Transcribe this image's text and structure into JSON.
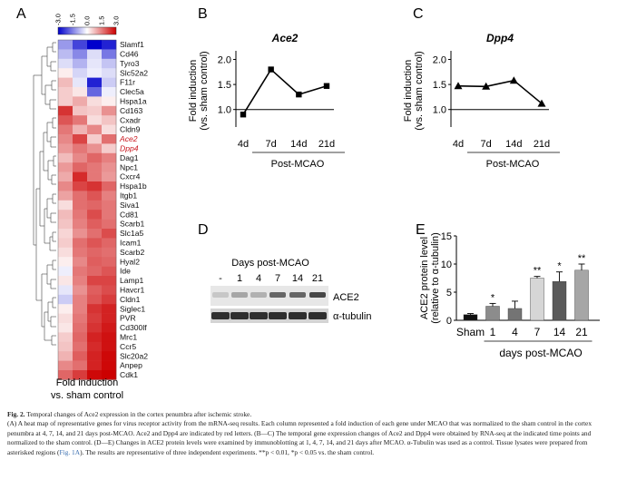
{
  "panels": {
    "a": "A",
    "b": "B",
    "c": "C",
    "d": "D",
    "e": "E"
  },
  "heatmap": {
    "scale_ticks": [
      "-3.0",
      "-1.5",
      "0.0",
      "1.5",
      "3.0"
    ],
    "genes": [
      "Slamf1",
      "Cd46",
      "Tyro3",
      "Slc52a2",
      "F11r",
      "Clec5a",
      "Hspa1a",
      "Cd163",
      "Cxadr",
      "Cldn9",
      "Ace2",
      "Dpp4",
      "Dag1",
      "Npc1",
      "Cxcr4",
      "Hspa1b",
      "Itgb1",
      "Siva1",
      "Cd81",
      "Scarb1",
      "Slc1a5",
      "Icam1",
      "Scarb2",
      "Hyal2",
      "Ide",
      "Lamp1",
      "Havcr1",
      "Cldn1",
      "Siglec1",
      "PVR",
      "Cd300lf",
      "Mrc1",
      "Ccr5",
      "Slc20a2",
      "Anpep",
      "Cdk1"
    ],
    "highlighted_genes": [
      "Ace2",
      "Dpp4"
    ],
    "values": [
      [
        -1.2,
        -2.2,
        -3,
        -2.6
      ],
      [
        -0.8,
        -1.4,
        -0.4,
        -1.6
      ],
      [
        -0.4,
        -0.9,
        -0.3,
        -0.7
      ],
      [
        0.2,
        -0.5,
        -0.2,
        -0.4
      ],
      [
        0.8,
        -0.3,
        -2.6,
        -0.6
      ],
      [
        0.6,
        0.3,
        -1.8,
        -0.2
      ],
      [
        0.6,
        1.0,
        0.4,
        0.2
      ],
      [
        2.4,
        0.7,
        0.6,
        1.3
      ],
      [
        2.0,
        1.6,
        0.4,
        0.7
      ],
      [
        1.6,
        0.9,
        1.4,
        0.4
      ],
      [
        1.4,
        2.2,
        0.6,
        1.7
      ],
      [
        1.2,
        1.6,
        1.3,
        0.6
      ],
      [
        0.8,
        1.4,
        1.8,
        1.5
      ],
      [
        1.2,
        1.8,
        1.6,
        1.3
      ],
      [
        1.0,
        2.5,
        1.6,
        1.2
      ],
      [
        1.4,
        2.2,
        2.4,
        1.8
      ],
      [
        1.1,
        1.7,
        2.0,
        1.5
      ],
      [
        0.4,
        1.7,
        1.8,
        1.6
      ],
      [
        0.8,
        1.6,
        2.1,
        1.6
      ],
      [
        0.7,
        1.5,
        1.9,
        1.7
      ],
      [
        0.5,
        1.3,
        1.7,
        2.1
      ],
      [
        0.6,
        1.7,
        2.0,
        1.8
      ],
      [
        0.4,
        1.6,
        1.8,
        1.7
      ],
      [
        0.2,
        1.4,
        1.9,
        1.8
      ],
      [
        -0.2,
        1.6,
        1.8,
        2.0
      ],
      [
        0.3,
        1.5,
        2.2,
        2.2
      ],
      [
        -0.3,
        1.3,
        1.9,
        2.1
      ],
      [
        -0.6,
        1.5,
        2.0,
        2.3
      ],
      [
        0.2,
        1.5,
        2.4,
        2.6
      ],
      [
        0.4,
        1.6,
        2.3,
        2.6
      ],
      [
        0.3,
        1.7,
        2.4,
        2.7
      ],
      [
        0.6,
        1.8,
        2.6,
        2.8
      ],
      [
        0.7,
        1.7,
        2.5,
        2.8
      ],
      [
        0.9,
        1.9,
        2.6,
        2.9
      ],
      [
        1.4,
        1.7,
        2.6,
        2.9
      ],
      [
        1.8,
        2.3,
        2.9,
        3.0
      ]
    ],
    "xlabel_line1": "Fold induction",
    "xlabel_line2": "vs. sham control",
    "colors": {
      "low": "#0000cc",
      "mid": "#ffffff",
      "high": "#cc0000",
      "highlight": "#c8161d"
    }
  },
  "chart_data": [
    {
      "type": "line",
      "title": "Ace2",
      "categories": [
        "4d",
        "7d",
        "14d",
        "21d"
      ],
      "values": [
        0.9,
        1.8,
        1.3,
        1.47
      ],
      "marker": "square",
      "ylabel": [
        "Fold induction",
        "(vs. sham control)"
      ],
      "xlabel": "Post-MCAO",
      "yticks": [
        "1.0",
        "1.5",
        "2.0"
      ],
      "ylim": [
        0.65,
        2.1
      ],
      "reference_line": 1.0
    },
    {
      "type": "line",
      "title": "Dpp4",
      "categories": [
        "4d",
        "7d",
        "14d",
        "21d"
      ],
      "values": [
        1.47,
        1.46,
        1.58,
        1.12
      ],
      "marker": "triangle",
      "ylabel": [
        "Fold induction",
        "(vs. sham control)"
      ],
      "xlabel": "Post-MCAO",
      "yticks": [
        "1.0",
        "1.5",
        "2.0"
      ],
      "ylim": [
        0.65,
        2.1
      ],
      "reference_line": 1.0
    },
    {
      "type": "bar",
      "categories": [
        "Sham",
        "1",
        "4",
        "7",
        "14",
        "21"
      ],
      "values": [
        1.0,
        2.5,
        2.1,
        7.5,
        6.9,
        8.9
      ],
      "errors": [
        0.2,
        0.5,
        1.3,
        0.3,
        1.7,
        1.1
      ],
      "significance": [
        "",
        "*",
        "",
        "**",
        "*",
        "**"
      ],
      "bar_colors": [
        "#111111",
        "#8c8c8c",
        "#747474",
        "#d6d6d6",
        "#5a5a5a",
        "#a6a6a6"
      ],
      "ylabel": [
        "ACE2 protein level",
        "(relative to α-tubulin)"
      ],
      "xlabel": "days post-MCAO",
      "yticks": [
        "0",
        "5",
        "10",
        "15"
      ],
      "ylim": [
        0,
        15
      ]
    }
  ],
  "blot": {
    "header": "Days post-MCAO",
    "lanes": [
      "-",
      "1",
      "4",
      "7",
      "14",
      "21"
    ],
    "labels": [
      "ACE2",
      "α-tubulin"
    ]
  },
  "caption": {
    "fig_label": "Fig. 2.",
    "title": "Temporal changes of Ace2 expression in the cortex penumbra after ischemic stroke.",
    "p1": "(A) A heat map of representative genes for virus receptor activity from the mRNA-seq results. Each column represented a fold induction of each gene under MCAO that was normalized to the sham control in the cortex penumbra at 4, 7, 14, and 21 days post-MCAO. Ace2 and Dpp4 are indicated by red letters. (B—C) The temporal gene expression changes of Ace2 and Dpp4 were obtained by RNA-seq at the indicated time points and normalized to the sham control. (D—E) Changes in ACE2 protein levels were examined by immunoblotting at 1, 4, 7, 14, and 21 days after MCAO. α-Tubulin was used as a control. Tissue lysates were prepared from asterisked regions (",
    "ref": "Fig. 1A",
    "p2": "). The results are representative of three independent experiments. **p < 0.01, *p < 0.05 vs. the sham control."
  }
}
